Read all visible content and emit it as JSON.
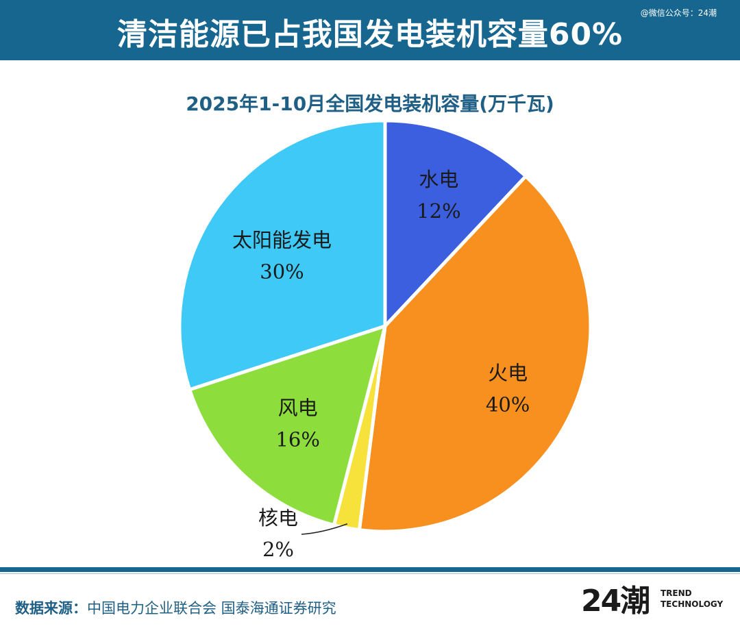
{
  "header": {
    "title": "清洁能源已占我国发电装机容量60%",
    "watermark": "@微信公众号：24潮"
  },
  "chart_data": {
    "type": "pie",
    "title": "2025年1-10月全国发电装机容量(万千瓦)",
    "slices": [
      {
        "label": "水电",
        "value": 12,
        "value_label": "12%",
        "color": "#3b5fdf"
      },
      {
        "label": "火电",
        "value": 40,
        "value_label": "40%",
        "color": "#f7901e"
      },
      {
        "label": "核电",
        "value": 2,
        "value_label": "2%",
        "color": "#f7e23c"
      },
      {
        "label": "风电",
        "value": 16,
        "value_label": "16%",
        "color": "#8ddd3d"
      },
      {
        "label": "太阳能发电",
        "value": 30,
        "value_label": "30%",
        "color": "#3ec9f6"
      }
    ]
  },
  "footer": {
    "source_prefix": "数据来源：",
    "source_text": "中国电力企业联合会 国泰海通证券研究",
    "logo_mark": "24潮",
    "logo_line1": "TREND",
    "logo_line2": "TECHNOLOGY"
  }
}
